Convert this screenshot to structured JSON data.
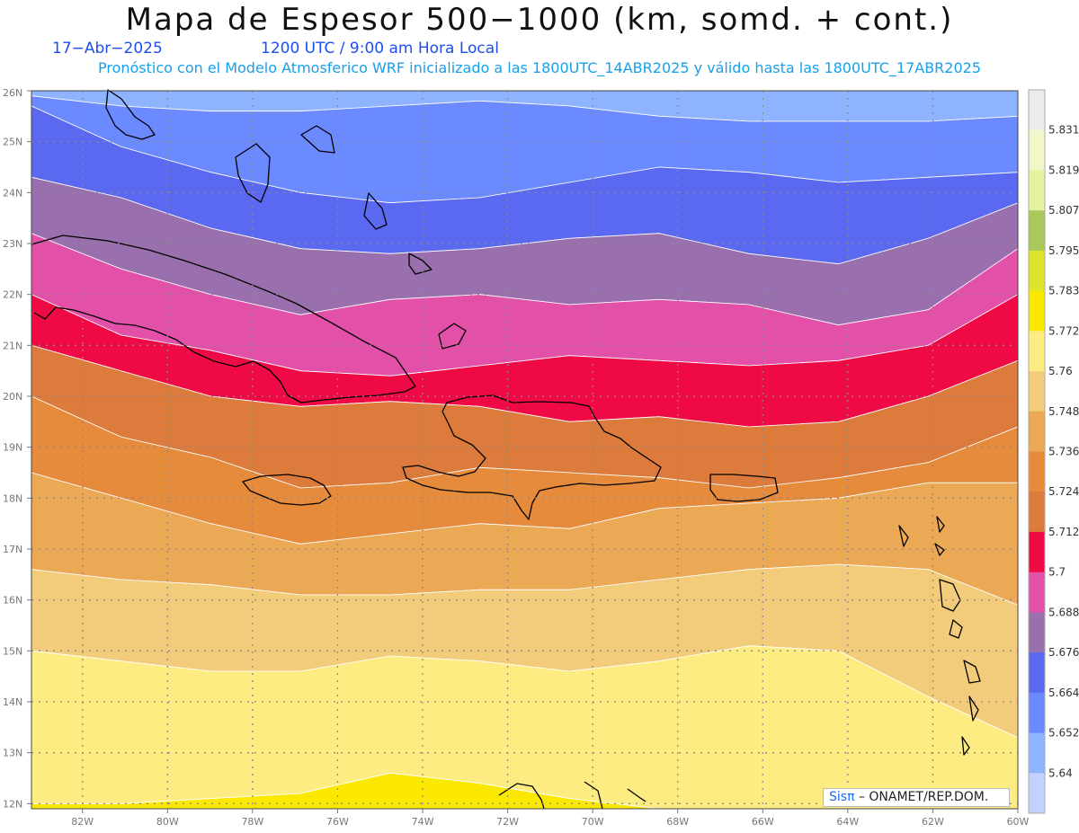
{
  "header": {
    "title": "Mapa de Espesor 500−1000 (km, somd. + cont.)",
    "date": "17−Abr−2025",
    "time": "1200 UTC / 9:00 am Hora Local",
    "subtitle": "Pronóstico con el Modelo Atmosferico WRF inicializado a las 1800UTC_14ABR2025 y válido hasta las  1800UTC_17ABR2025"
  },
  "map": {
    "lat_labels": [
      "12N",
      "13N",
      "14N",
      "15N",
      "16N",
      "17N",
      "18N",
      "19N",
      "20N",
      "21N",
      "22N",
      "23N",
      "24N",
      "25N",
      "26N"
    ],
    "lon_labels": [
      "82W",
      "80W",
      "78W",
      "76W",
      "74W",
      "72W",
      "70W",
      "68W",
      "66W",
      "64W",
      "62W",
      "60W"
    ],
    "lat_range": [
      11.9,
      26.0
    ],
    "lon_range": [
      -83.2,
      -60.0
    ],
    "contour_band_edges": [
      {
        "level": "5.652/5.664",
        "lats": [
          25.9,
          25.7,
          25.6,
          25.6,
          25.7,
          25.8,
          25.7,
          25.5,
          25.4,
          25.4,
          25.4,
          25.5
        ]
      },
      {
        "level": "5.664/5.676",
        "lats": [
          25.7,
          24.9,
          24.4,
          24.0,
          23.8,
          23.9,
          24.2,
          24.5,
          24.4,
          24.2,
          24.3,
          24.4
        ]
      },
      {
        "level": "5.676/5.688",
        "lats": [
          24.3,
          23.9,
          23.3,
          22.9,
          22.8,
          22.9,
          23.1,
          23.2,
          22.8,
          22.6,
          23.1,
          23.8
        ]
      },
      {
        "level": "5.688/5.700",
        "lats": [
          23.2,
          22.5,
          22.0,
          21.6,
          21.9,
          22.0,
          21.8,
          21.9,
          21.8,
          21.4,
          21.7,
          22.9
        ]
      },
      {
        "level": "5.700/5.712",
        "lats": [
          22.0,
          21.2,
          20.9,
          20.5,
          20.4,
          20.6,
          20.8,
          20.7,
          20.6,
          20.7,
          21.0,
          22.0
        ]
      },
      {
        "level": "5.712/5.724",
        "lats": [
          21.0,
          20.5,
          20.0,
          19.8,
          19.9,
          19.8,
          19.5,
          19.6,
          19.4,
          19.5,
          20.0,
          20.7
        ]
      },
      {
        "level": "5.724/5.736",
        "lats": [
          20.0,
          19.2,
          18.8,
          18.2,
          18.3,
          18.6,
          18.5,
          18.4,
          18.2,
          18.4,
          18.7,
          19.4
        ]
      },
      {
        "level": "5.736/5.748",
        "lats": [
          18.5,
          18.0,
          17.5,
          17.1,
          17.3,
          17.5,
          17.4,
          17.8,
          17.9,
          18.0,
          18.3,
          18.3
        ]
      },
      {
        "level": "5.748/5.760",
        "lats": [
          16.6,
          16.4,
          16.3,
          16.1,
          16.1,
          16.2,
          16.2,
          16.4,
          16.6,
          16.7,
          16.6,
          15.9
        ]
      },
      {
        "level": "5.760/5.772",
        "lats": [
          15.0,
          14.8,
          14.6,
          14.6,
          14.9,
          14.8,
          14.6,
          14.8,
          15.1,
          15.0,
          14.1,
          13.3
        ]
      },
      {
        "level": "5.772/5.783",
        "lats": [
          12.0,
          12.0,
          12.1,
          12.2,
          12.6,
          12.4,
          12.1,
          11.9,
          11.9,
          11.9,
          11.9,
          11.9
        ]
      }
    ],
    "band_fills": [
      "#8fb4ff",
      "#6c8aff",
      "#5b68f0",
      "#9a6fae",
      "#e350a8",
      "#ef0a45",
      "#dc7b3b",
      "#e68a3b",
      "#eba855",
      "#f2cc7a",
      "#fdec82",
      "#fbe800",
      "#dfe01b"
    ]
  },
  "colorbar": {
    "labels": [
      "5.831",
      "5.819",
      "5.807",
      "5.795",
      "5.783",
      "5.772",
      "5.76",
      "5.748",
      "5.736",
      "5.724",
      "5.712",
      "5.7",
      "5.688",
      "5.676",
      "5.664",
      "5.652",
      "5.64"
    ],
    "colors": [
      "#ececec",
      "#f3f6c8",
      "#e5f3a0",
      "#abc85a",
      "#dde52a",
      "#fbe800",
      "#fdec82",
      "#f2cc7a",
      "#eba855",
      "#e68a3b",
      "#dc7b3b",
      "#ef0a45",
      "#e350a8",
      "#9a6fae",
      "#5b68f0",
      "#6c8aff",
      "#8fb4ff",
      "#c3d1ff"
    ]
  },
  "credit": {
    "symbol": "Sisπ",
    "text": "– ONAMET/REP.DOM."
  }
}
